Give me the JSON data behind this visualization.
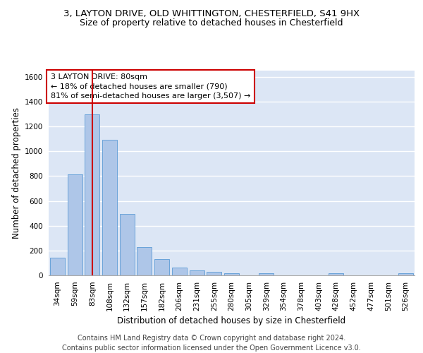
{
  "title_line1": "3, LAYTON DRIVE, OLD WHITTINGTON, CHESTERFIELD, S41 9HX",
  "title_line2": "Size of property relative to detached houses in Chesterfield",
  "xlabel": "Distribution of detached houses by size in Chesterfield",
  "ylabel": "Number of detached properties",
  "categories": [
    "34sqm",
    "59sqm",
    "83sqm",
    "108sqm",
    "132sqm",
    "157sqm",
    "182sqm",
    "206sqm",
    "231sqm",
    "255sqm",
    "280sqm",
    "305sqm",
    "329sqm",
    "354sqm",
    "378sqm",
    "403sqm",
    "428sqm",
    "452sqm",
    "477sqm",
    "501sqm",
    "526sqm"
  ],
  "values": [
    140,
    815,
    1295,
    1090,
    495,
    230,
    130,
    65,
    40,
    27,
    18,
    0,
    18,
    0,
    0,
    0,
    18,
    0,
    0,
    0,
    18
  ],
  "bar_color": "#aec6e8",
  "bar_edge_color": "#5b9bd5",
  "background_color": "#dce6f5",
  "grid_color": "#ffffff",
  "vline_x_index": 2,
  "vline_color": "#cc0000",
  "annotation_text": "3 LAYTON DRIVE: 80sqm\n← 18% of detached houses are smaller (790)\n81% of semi-detached houses are larger (3,507) →",
  "annotation_box_facecolor": "#ffffff",
  "annotation_box_edgecolor": "#cc0000",
  "ylim": [
    0,
    1650
  ],
  "yticks": [
    0,
    200,
    400,
    600,
    800,
    1000,
    1200,
    1400,
    1600
  ],
  "footer_line1": "Contains HM Land Registry data © Crown copyright and database right 2024.",
  "footer_line2": "Contains public sector information licensed under the Open Government Licence v3.0.",
  "title_fontsize": 9.5,
  "subtitle_fontsize": 9,
  "axis_label_fontsize": 8.5,
  "tick_fontsize": 7.5,
  "annotation_fontsize": 8,
  "footer_fontsize": 7
}
